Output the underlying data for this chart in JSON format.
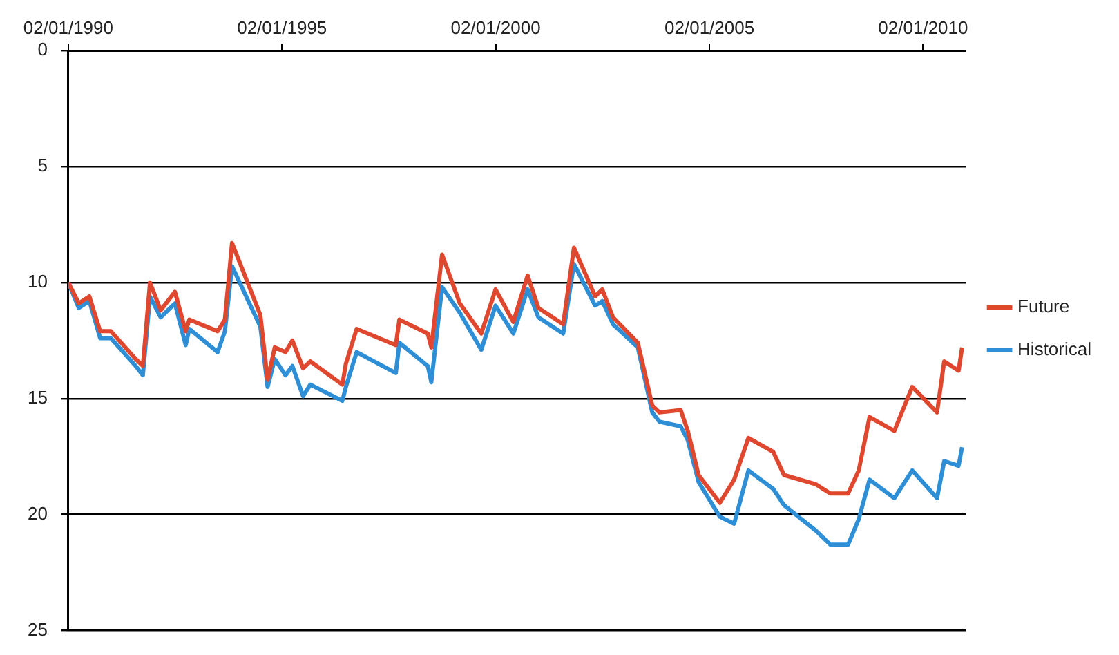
{
  "chart_data": {
    "type": "line",
    "x": [
      "1990-01-02",
      "1990-04",
      "1990-07",
      "1990-10",
      "1991-01",
      "1991-08",
      "1991-10",
      "1991-12",
      "1992-03",
      "1992-07",
      "1992-10",
      "1992-11",
      "1993-07",
      "1993-09",
      "1993-11",
      "1994-07",
      "1994-09",
      "1994-11",
      "1995-02",
      "1995-04",
      "1995-07",
      "1995-09",
      "1996-06",
      "1996-07",
      "1996-10",
      "1997-09",
      "1997-10",
      "1998-06",
      "1998-07",
      "1998-10",
      "1999-03",
      "1999-09",
      "2000-01",
      "2000-06",
      "2000-10",
      "2001-01",
      "2001-08",
      "2001-11",
      "2002-05",
      "2002-07",
      "2002-10",
      "2003-05",
      "2003-09",
      "2003-11",
      "2004-05",
      "2004-07",
      "2004-10",
      "2005-04",
      "2005-08",
      "2005-12",
      "2006-07",
      "2006-10",
      "2007-07",
      "2007-11",
      "2008-04",
      "2008-07",
      "2008-10",
      "2009-05",
      "2009-10",
      "2010-05",
      "2010-07",
      "2010-11",
      "2010-12"
    ],
    "series": [
      {
        "name": "Historical",
        "color": "#2e8fd6",
        "values": [
          10.0,
          11.1,
          10.8,
          12.4,
          12.4,
          13.6,
          14.0,
          10.6,
          11.5,
          10.9,
          12.7,
          12.0,
          13.0,
          12.1,
          9.3,
          11.9,
          14.5,
          13.3,
          14.0,
          13.6,
          14.9,
          14.4,
          15.1,
          14.5,
          13.0,
          13.9,
          12.6,
          13.6,
          14.3,
          10.2,
          11.3,
          12.9,
          11.0,
          12.2,
          10.3,
          11.5,
          12.2,
          9.2,
          11.0,
          10.8,
          11.8,
          12.8,
          15.6,
          16.0,
          16.2,
          16.8,
          18.6,
          20.1,
          20.4,
          18.1,
          18.9,
          19.6,
          20.7,
          21.3,
          21.3,
          20.2,
          18.5,
          19.3,
          18.1,
          19.3,
          17.7,
          17.9,
          17.1
        ]
      },
      {
        "name": "Future",
        "color": "#e0472f",
        "values": [
          10.0,
          10.9,
          10.6,
          12.1,
          12.1,
          13.3,
          13.6,
          10.0,
          11.2,
          10.4,
          12.1,
          11.6,
          12.1,
          11.6,
          8.3,
          11.4,
          14.2,
          12.8,
          13.0,
          12.5,
          13.7,
          13.4,
          14.4,
          13.5,
          12.0,
          12.7,
          11.6,
          12.2,
          12.8,
          8.8,
          10.9,
          12.2,
          10.3,
          11.7,
          9.7,
          11.1,
          11.8,
          8.5,
          10.6,
          10.3,
          11.5,
          12.6,
          15.3,
          15.6,
          15.5,
          16.4,
          18.3,
          19.5,
          18.5,
          16.7,
          17.3,
          18.3,
          18.7,
          19.1,
          19.1,
          18.1,
          15.8,
          16.4,
          14.5,
          15.6,
          13.4,
          13.8,
          12.8
        ]
      }
    ],
    "xlim": [
      "1990-01-02",
      "2011-01-01"
    ],
    "xticks": [
      {
        "value": "1990-01-02",
        "label": "02/01/1990"
      },
      {
        "value": "1995-01-02",
        "label": "02/01/1995"
      },
      {
        "value": "2000-01-02",
        "label": "02/01/2000"
      },
      {
        "value": "2005-01-02",
        "label": "02/01/2005"
      },
      {
        "value": "2010-01-02",
        "label": "02/01/2010"
      }
    ],
    "ylim": [
      25,
      0
    ],
    "yticks": [
      0,
      5,
      10,
      15,
      20,
      25
    ],
    "grid": "y",
    "legend": "right",
    "marker": "none",
    "line_style": "solid"
  }
}
